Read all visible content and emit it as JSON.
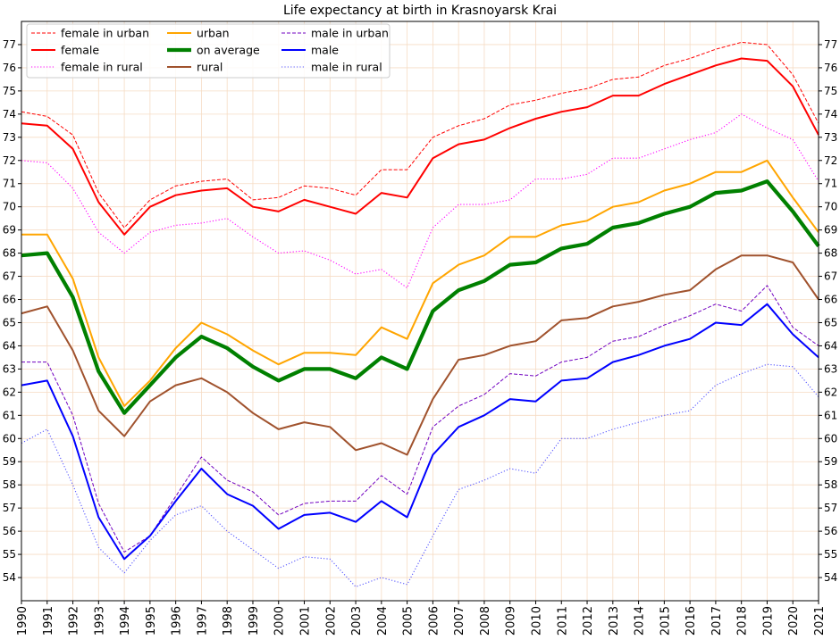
{
  "chart_data": {
    "type": "line",
    "title": "Life expectancy at birth in Krasnoyarsk Krai",
    "xlabel": "",
    "ylabel": "",
    "xlim": [
      1990,
      2021
    ],
    "ylim": [
      53,
      78
    ],
    "x": [
      1990,
      1991,
      1992,
      1993,
      1994,
      1995,
      1996,
      1997,
      1998,
      1999,
      2000,
      2001,
      2002,
      2003,
      2004,
      2005,
      2006,
      2007,
      2008,
      2009,
      2010,
      2011,
      2012,
      2013,
      2014,
      2015,
      2016,
      2017,
      2018,
      2019,
      2020,
      2021
    ],
    "x_tick_labels": [
      "1990",
      "1991",
      "1992",
      "1993",
      "1994",
      "1995",
      "1996",
      "1997",
      "1998",
      "1999",
      "2000",
      "2001",
      "2002",
      "2003",
      "2004",
      "2005",
      "2006",
      "2007",
      "2008",
      "2009",
      "2010",
      "2011",
      "2012",
      "2013",
      "2014",
      "2015",
      "2016",
      "2017",
      "2018",
      "2019",
      "2020",
      "2021"
    ],
    "y_tick_labels": [
      "54",
      "55",
      "56",
      "57",
      "58",
      "59",
      "60",
      "61",
      "62",
      "63",
      "64",
      "65",
      "66",
      "67",
      "68",
      "69",
      "70",
      "71",
      "72",
      "73",
      "74",
      "75",
      "76",
      "77"
    ],
    "grid": true,
    "legend_location": "top-left",
    "series": [
      {
        "name": "female in urban",
        "color": "#ff0000",
        "style": "dashed",
        "values": [
          74.1,
          73.9,
          73.1,
          70.6,
          69.1,
          70.3,
          70.9,
          71.1,
          71.2,
          70.3,
          70.4,
          70.9,
          70.8,
          70.5,
          71.6,
          71.6,
          73.0,
          73.5,
          73.8,
          74.4,
          74.6,
          74.9,
          75.1,
          75.5,
          75.6,
          76.1,
          76.4,
          76.8,
          77.1,
          77.0,
          75.7,
          73.6
        ]
      },
      {
        "name": "female",
        "color": "#ff0000",
        "style": "solid",
        "values": [
          73.6,
          73.5,
          72.5,
          70.2,
          68.8,
          70.0,
          70.5,
          70.7,
          70.8,
          70.0,
          69.8,
          70.3,
          70.0,
          69.7,
          70.6,
          70.4,
          72.1,
          72.7,
          72.9,
          73.4,
          73.8,
          74.1,
          74.3,
          74.8,
          74.8,
          75.3,
          75.7,
          76.1,
          76.4,
          76.3,
          75.2,
          73.1
        ]
      },
      {
        "name": "female in rural",
        "color": "#ff00ff",
        "style": "dotted",
        "values": [
          72.0,
          71.9,
          70.8,
          68.9,
          68.0,
          68.9,
          69.2,
          69.3,
          69.5,
          68.7,
          68.0,
          68.1,
          67.7,
          67.1,
          67.3,
          66.5,
          69.1,
          70.1,
          70.1,
          70.3,
          71.2,
          71.2,
          71.4,
          72.1,
          72.1,
          72.5,
          72.9,
          73.2,
          74.0,
          73.4,
          72.9,
          71.1
        ]
      },
      {
        "name": "urban",
        "color": "#ffa500",
        "style": "solid",
        "values": [
          68.8,
          68.8,
          66.9,
          63.5,
          61.4,
          62.5,
          63.9,
          65.0,
          64.5,
          63.8,
          63.2,
          63.7,
          63.7,
          63.6,
          64.8,
          64.3,
          66.7,
          67.5,
          67.9,
          68.7,
          68.7,
          69.2,
          69.4,
          70.0,
          70.2,
          70.7,
          71.0,
          71.5,
          71.5,
          72.0,
          70.4,
          68.9
        ]
      },
      {
        "name": "on average",
        "color": "#008000",
        "style": "thick",
        "values": [
          67.9,
          68.0,
          66.1,
          62.9,
          61.1,
          62.3,
          63.5,
          64.4,
          63.9,
          63.1,
          62.5,
          63.0,
          63.0,
          62.6,
          63.5,
          63.0,
          65.5,
          66.4,
          66.8,
          67.5,
          67.6,
          68.2,
          68.4,
          69.1,
          69.3,
          69.7,
          70.0,
          70.6,
          70.7,
          71.1,
          69.8,
          68.3
        ]
      },
      {
        "name": "rural",
        "color": "#a0522d",
        "style": "solid",
        "values": [
          65.4,
          65.7,
          63.8,
          61.2,
          60.1,
          61.6,
          62.3,
          62.6,
          62.0,
          61.1,
          60.4,
          60.7,
          60.5,
          59.5,
          59.8,
          59.3,
          61.7,
          63.4,
          63.6,
          64.0,
          64.2,
          65.1,
          65.2,
          65.7,
          65.9,
          66.2,
          66.4,
          67.3,
          67.9,
          67.9,
          67.6,
          66.0
        ]
      },
      {
        "name": "male in urban",
        "color": "#7000c0",
        "style": "dashed",
        "values": [
          63.3,
          63.3,
          61.0,
          57.2,
          55.1,
          55.8,
          57.5,
          59.2,
          58.2,
          57.7,
          56.7,
          57.2,
          57.3,
          57.3,
          58.4,
          57.6,
          60.5,
          61.4,
          61.9,
          62.8,
          62.7,
          63.3,
          63.5,
          64.2,
          64.4,
          64.9,
          65.3,
          65.8,
          65.5,
          66.6,
          64.8,
          64.0
        ]
      },
      {
        "name": "male",
        "color": "#0000ff",
        "style": "solid",
        "values": [
          62.3,
          62.5,
          60.1,
          56.6,
          54.8,
          55.8,
          57.3,
          58.7,
          57.6,
          57.1,
          56.1,
          56.7,
          56.8,
          56.4,
          57.3,
          56.6,
          59.3,
          60.5,
          61.0,
          61.7,
          61.6,
          62.5,
          62.6,
          63.3,
          63.6,
          64.0,
          64.3,
          65.0,
          64.9,
          65.8,
          64.5,
          63.5
        ]
      },
      {
        "name": "male in rural",
        "color": "#5555ff",
        "style": "dotted",
        "values": [
          59.8,
          60.4,
          58.0,
          55.3,
          54.2,
          55.6,
          56.7,
          57.1,
          56.0,
          55.2,
          54.4,
          54.9,
          54.8,
          53.6,
          54.0,
          53.7,
          55.8,
          57.8,
          58.2,
          58.7,
          58.5,
          60.0,
          60.0,
          60.4,
          60.7,
          61.0,
          61.2,
          62.3,
          62.8,
          63.2,
          63.1,
          61.8
        ]
      }
    ]
  }
}
